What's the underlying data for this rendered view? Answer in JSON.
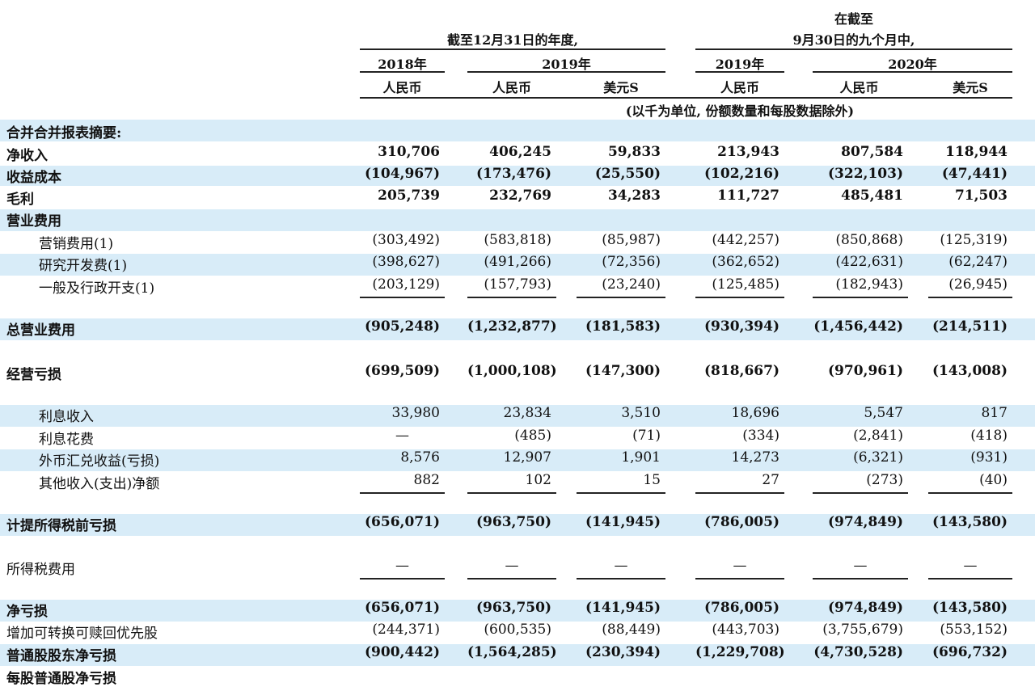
{
  "header": {
    "left_title": "截至12月31日的年度,",
    "right_title_line1": "在截至",
    "right_title_line2": "9月30日的九个月中,",
    "years": [
      "2018年",
      "2019年",
      "2019年",
      "2020年"
    ],
    "currencies": [
      "人民币",
      "人民币",
      "美元S",
      "人民币",
      "人民币",
      "美元S"
    ],
    "unit_note": "(以千为单位, 份额数量和每股数据除外)"
  },
  "rows": [
    {
      "label": "合并合并报表摘要:",
      "values": []
    },
    {
      "label": "净收入",
      "values": [
        "310,706",
        "406,245",
        "59,833",
        "213,943",
        "807,584",
        "118,944"
      ]
    },
    {
      "label": "收益成本",
      "values": [
        "(104,967)",
        "(173,476)",
        "(25,550)",
        "(102,216)",
        "(322,103)",
        "(47,441)"
      ]
    },
    {
      "label": "毛利",
      "values": [
        "205,739",
        "232,769",
        "34,283",
        "111,727",
        "485,481",
        "71,503"
      ]
    },
    {
      "label": "营业费用",
      "values": []
    },
    {
      "label": "营销费用(1)",
      "values": [
        "(303,492)",
        "(583,818)",
        "(85,987)",
        "(442,257)",
        "(850,868)",
        "(125,319)"
      ]
    },
    {
      "label": "研究开发费(1)",
      "values": [
        "(398,627)",
        "(491,266)",
        "(72,356)",
        "(362,652)",
        "(422,631)",
        "(62,247)"
      ]
    },
    {
      "label": "一般及行政开支(1)",
      "values": [
        "(203,129)",
        "(157,793)",
        "(23,240)",
        "(125,485)",
        "(182,943)",
        "(26,945)"
      ]
    },
    {
      "label": "总营业费用",
      "values": [
        "(905,248)",
        "(1,232,877)",
        "(181,583)",
        "(930,394)",
        "(1,456,442)",
        "(214,511)"
      ]
    },
    {
      "label": "经营亏损",
      "values": [
        "(699,509)",
        "(1,000,108)",
        "(147,300)",
        "(818,667)",
        "(970,961)",
        "(143,008)"
      ]
    },
    {
      "label": "利息收入",
      "values": [
        "33,980",
        "23,834",
        "3,510",
        "18,696",
        "5,547",
        "817"
      ]
    },
    {
      "label": "利息花费",
      "values": [
        "—",
        "(485)",
        "(71)",
        "(334)",
        "(2,841)",
        "(418)"
      ]
    },
    {
      "label": "外币汇兑收益(亏损)",
      "values": [
        "8,576",
        "12,907",
        "1,901",
        "14,273",
        "(6,321)",
        "(931)"
      ]
    },
    {
      "label": "其他收入(支出)净额",
      "values": [
        "882",
        "102",
        "15",
        "27",
        "(273)",
        "(40)"
      ]
    },
    {
      "label": "计提所得税前亏损",
      "values": [
        "(656,071)",
        "(963,750)",
        "(141,945)",
        "(786,005)",
        "(974,849)",
        "(143,580)"
      ]
    },
    {
      "label": "所得税费用",
      "values": [
        "—",
        "—",
        "—",
        "—",
        "—",
        "—"
      ]
    },
    {
      "label": "净亏损",
      "values": [
        "(656,071)",
        "(963,750)",
        "(141,945)",
        "(786,005)",
        "(974,849)",
        "(143,580)"
      ]
    },
    {
      "label": "增加可转换可赎回优先股",
      "values": [
        "(244,371)",
        "(600,535)",
        "(88,449)",
        "(443,703)",
        "(3,755,679)",
        "(553,152)"
      ]
    },
    {
      "label": "普通股股东净亏损",
      "values": [
        "(900,442)",
        "(1,564,285)",
        "(230,394)",
        "(1,229,708)",
        "(4,730,528)",
        "(696,732)"
      ]
    },
    {
      "label": "每股普通股净亏损",
      "values": []
    }
  ]
}
